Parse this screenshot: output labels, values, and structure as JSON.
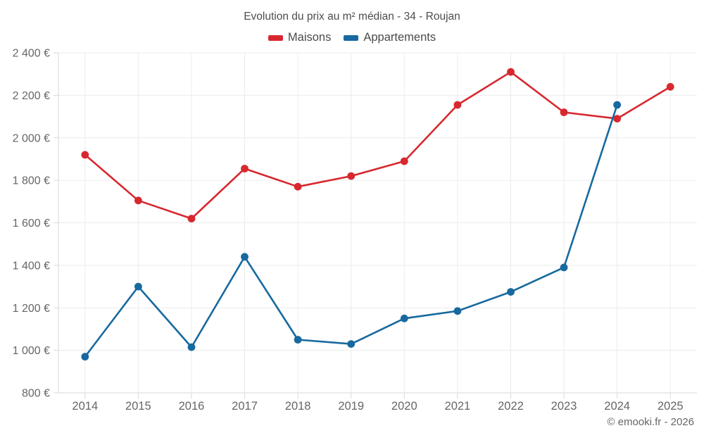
{
  "header": {
    "title": "Evolution du prix au m² médian - 34 - Roujan"
  },
  "legend": {
    "items": [
      {
        "label": "Maisons",
        "color": "#d7282f"
      },
      {
        "label": "Appartements",
        "color": "#17699f"
      }
    ]
  },
  "footer": {
    "text": "© emooki.fr - 2026"
  },
  "chart_data": {
    "type": "line",
    "title": "Evolution du prix au m² médian - 34 - Roujan",
    "categories": [
      "2014",
      "2015",
      "2016",
      "2017",
      "2018",
      "2019",
      "2020",
      "2021",
      "2022",
      "2023",
      "2024",
      "2025"
    ],
    "series": [
      {
        "name": "Maisons",
        "color": "#d7282f",
        "values": [
          1920,
          1705,
          1620,
          1855,
          1770,
          1820,
          1890,
          2155,
          2310,
          2120,
          2090,
          2240
        ]
      },
      {
        "name": "Appartements",
        "color": "#17699f",
        "values": [
          970,
          1300,
          1015,
          1440,
          1050,
          1030,
          1150,
          1185,
          1275,
          1390,
          2155,
          null
        ]
      }
    ],
    "xlabel": "",
    "ylabel": "",
    "ylim": [
      800,
      2400
    ],
    "yticks": [
      {
        "value": 800,
        "label": "800 €"
      },
      {
        "value": 1000,
        "label": "1 000 €"
      },
      {
        "value": 1200,
        "label": "1 200 €"
      },
      {
        "value": 1400,
        "label": "1 400 €"
      },
      {
        "value": 1600,
        "label": "1 600 €"
      },
      {
        "value": 1800,
        "label": "1 800 €"
      },
      {
        "value": 2000,
        "label": "2 000 €"
      },
      {
        "value": 2200,
        "label": "2 200 €"
      },
      {
        "value": 2400,
        "label": "2 400 €"
      }
    ],
    "grid": true,
    "legend_position": "top",
    "marker": "circle"
  },
  "colors": {
    "grid": "#ececec",
    "axis": "#d9d9d9",
    "tick_text": "#666666"
  }
}
